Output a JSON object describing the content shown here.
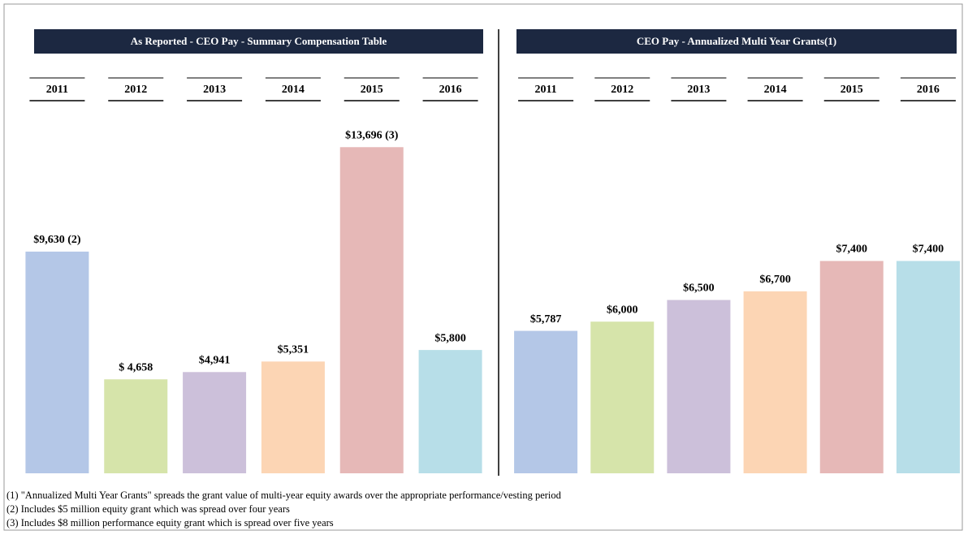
{
  "chart_data": [
    {
      "type": "bar",
      "title": "As Reported - CEO Pay - Summary Compensation Table",
      "categories": [
        "2011",
        "2012",
        "2013",
        "2014",
        "2015",
        "2016"
      ],
      "values": [
        9630,
        4658,
        4941,
        5351,
        13696,
        5800
      ],
      "value_labels": [
        "$9,630 (2)",
        "$ 4,658",
        "$4,941",
        "$5,351",
        "$13,696 (3)",
        "$5,800"
      ],
      "colors": [
        "#b4c7e7",
        "#d6e4aa",
        "#ccc0da",
        "#fcd5b4",
        "#e6b8b7",
        "#b7dee8"
      ],
      "ylim": [
        1000,
        15000
      ]
    },
    {
      "type": "bar",
      "title": "CEO Pay - Annualized Multi Year Grants(1)",
      "categories": [
        "2011",
        "2012",
        "2013",
        "2014",
        "2015",
        "2016"
      ],
      "values": [
        5787,
        6000,
        6500,
        6700,
        7400,
        7400
      ],
      "value_labels": [
        "$5,787",
        "$6,000",
        "$6,500",
        "$6,700",
        "$7,400",
        "$7,400"
      ],
      "colors": [
        "#b4c7e7",
        "#d6e4aa",
        "#ccc0da",
        "#fcd5b4",
        "#e6b8b7",
        "#b7dee8"
      ],
      "ylim": [
        2500,
        10800
      ]
    }
  ],
  "footnotes": [
    "(1) \"Annualized Multi Year Grants\" spreads the grant value of multi-year equity awards over the appropriate performance/vesting period",
    "(2) Includes $5 million equity grant which was spread over four years",
    "(3) Includes $8 million performance equity grant which is spread over five years"
  ]
}
